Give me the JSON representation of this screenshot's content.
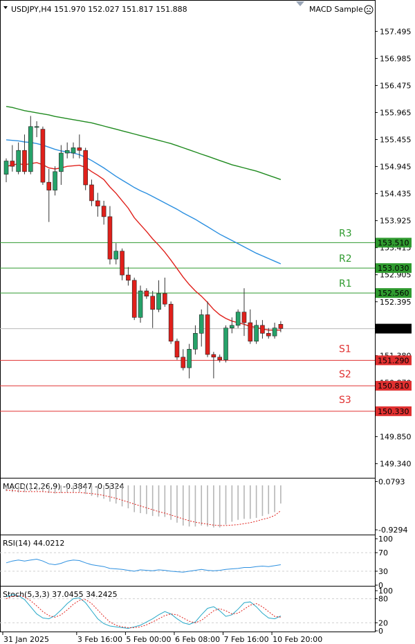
{
  "header": {
    "symbol_info": "USDJPY,H4  151.970 152.027 151.817 151.888",
    "indicator_name": "MACD Sample",
    "indicator_icon": "smiley-icon"
  },
  "colors": {
    "bull": "#26a269",
    "bear": "#e0201b",
    "ma_fast": "#e0201b",
    "ma_mid": "#2b8fe0",
    "ma_slow": "#1f8a1f",
    "res_line": "#2f9a2f",
    "sup_line": "#e03030",
    "price_tag": "#000000"
  },
  "chart_data": [
    {
      "type": "candlestick",
      "title": "USDJPY,H4",
      "ylim": [
        149.1,
        157.8
      ],
      "y_ticks": [
        157.495,
        156.985,
        156.475,
        155.965,
        155.455,
        154.945,
        154.435,
        153.925,
        153.415,
        152.905,
        152.395,
        151.38,
        150.87,
        150.36,
        149.85,
        149.34
      ],
      "x_ticks": [
        "31 Jan 2025",
        "3 Feb 16:00",
        "5 Feb 00:00",
        "6 Feb 08:00",
        "7 Feb 16:00",
        "10 Feb 20:00"
      ],
      "x_tick_index": [
        0,
        12,
        20,
        28,
        36,
        44
      ],
      "last_price": "151.888",
      "levels": [
        {
          "name": "R3",
          "value": "153.510",
          "kind": "resistance"
        },
        {
          "name": "R2",
          "value": "153.030",
          "kind": "resistance"
        },
        {
          "name": "R1",
          "value": "152.560",
          "kind": "resistance"
        },
        {
          "name": "S1",
          "value": "151.290",
          "kind": "support"
        },
        {
          "name": "S2",
          "value": "150.810",
          "kind": "support"
        },
        {
          "name": "S3",
          "value": "150.330",
          "kind": "support"
        }
      ],
      "candles": [
        {
          "o": 154.8,
          "h": 155.1,
          "l": 154.65,
          "c": 155.05
        },
        {
          "o": 155.05,
          "h": 155.35,
          "l": 154.85,
          "c": 154.95
        },
        {
          "o": 154.85,
          "h": 155.4,
          "l": 154.8,
          "c": 155.25
        },
        {
          "o": 155.25,
          "h": 155.55,
          "l": 154.8,
          "c": 154.85
        },
        {
          "o": 154.85,
          "h": 155.9,
          "l": 154.8,
          "c": 155.7
        },
        {
          "o": 155.7,
          "h": 155.8,
          "l": 155.5,
          "c": 155.7
        },
        {
          "o": 155.65,
          "h": 155.7,
          "l": 154.6,
          "c": 154.65
        },
        {
          "o": 154.65,
          "h": 154.9,
          "l": 153.9,
          "c": 154.5
        },
        {
          "o": 154.5,
          "h": 154.95,
          "l": 154.4,
          "c": 154.85
        },
        {
          "o": 154.85,
          "h": 155.35,
          "l": 154.6,
          "c": 155.2
        },
        {
          "o": 155.2,
          "h": 155.4,
          "l": 155.1,
          "c": 155.25
        },
        {
          "o": 155.2,
          "h": 155.4,
          "l": 155.1,
          "c": 155.3
        },
        {
          "o": 155.3,
          "h": 155.55,
          "l": 155.1,
          "c": 155.25
        },
        {
          "o": 155.25,
          "h": 155.3,
          "l": 154.5,
          "c": 154.6
        },
        {
          "o": 154.6,
          "h": 154.7,
          "l": 154.2,
          "c": 154.3
        },
        {
          "o": 154.3,
          "h": 154.45,
          "l": 154.0,
          "c": 154.2
        },
        {
          "o": 154.2,
          "h": 154.3,
          "l": 153.85,
          "c": 154.0
        },
        {
          "o": 154.0,
          "h": 154.2,
          "l": 153.1,
          "c": 153.2
        },
        {
          "o": 153.2,
          "h": 153.5,
          "l": 153.1,
          "c": 153.35
        },
        {
          "o": 153.35,
          "h": 153.4,
          "l": 152.8,
          "c": 152.9
        },
        {
          "o": 152.9,
          "h": 153.05,
          "l": 152.7,
          "c": 152.8
        },
        {
          "o": 152.8,
          "h": 152.85,
          "l": 152.05,
          "c": 152.1
        },
        {
          "o": 152.1,
          "h": 152.7,
          "l": 152.0,
          "c": 152.6
        },
        {
          "o": 152.6,
          "h": 152.65,
          "l": 152.45,
          "c": 152.5
        },
        {
          "o": 152.5,
          "h": 152.6,
          "l": 151.9,
          "c": 152.25
        },
        {
          "o": 152.25,
          "h": 152.8,
          "l": 152.2,
          "c": 152.55
        },
        {
          "o": 152.55,
          "h": 152.85,
          "l": 152.3,
          "c": 152.35
        },
        {
          "o": 152.35,
          "h": 152.4,
          "l": 151.6,
          "c": 151.65
        },
        {
          "o": 151.65,
          "h": 151.7,
          "l": 151.3,
          "c": 151.35
        },
        {
          "o": 151.35,
          "h": 151.5,
          "l": 151.1,
          "c": 151.15
        },
        {
          "o": 151.15,
          "h": 151.6,
          "l": 150.95,
          "c": 151.5
        },
        {
          "o": 151.5,
          "h": 151.95,
          "l": 151.4,
          "c": 151.8
        },
        {
          "o": 151.8,
          "h": 152.25,
          "l": 151.55,
          "c": 152.15
        },
        {
          "o": 152.15,
          "h": 152.4,
          "l": 151.35,
          "c": 151.4
        },
        {
          "o": 151.4,
          "h": 151.45,
          "l": 150.95,
          "c": 151.35
        },
        {
          "o": 151.35,
          "h": 151.4,
          "l": 151.25,
          "c": 151.3
        },
        {
          "o": 151.3,
          "h": 151.95,
          "l": 151.25,
          "c": 151.9
        },
        {
          "o": 151.9,
          "h": 152.1,
          "l": 151.8,
          "c": 151.95
        },
        {
          "o": 151.95,
          "h": 152.25,
          "l": 151.9,
          "c": 152.2
        },
        {
          "o": 152.2,
          "h": 152.65,
          "l": 151.75,
          "c": 152.0
        },
        {
          "o": 152.0,
          "h": 152.25,
          "l": 151.6,
          "c": 151.65
        },
        {
          "o": 151.65,
          "h": 152.05,
          "l": 151.6,
          "c": 151.95
        },
        {
          "o": 151.95,
          "h": 152.05,
          "l": 151.7,
          "c": 151.8
        },
        {
          "o": 151.8,
          "h": 151.9,
          "l": 151.7,
          "c": 151.75
        },
        {
          "o": 151.75,
          "h": 152.0,
          "l": 151.7,
          "c": 151.9
        },
        {
          "o": 151.97,
          "h": 152.03,
          "l": 151.82,
          "c": 151.89
        }
      ],
      "series": [
        {
          "values": [
            154.95,
            154.97,
            155.0,
            154.98,
            155.0,
            155.02,
            154.98,
            154.92,
            154.9,
            154.92,
            154.95,
            154.96,
            154.97,
            154.93,
            154.85,
            154.78,
            154.7,
            154.56,
            154.44,
            154.3,
            154.16,
            153.98,
            153.85,
            153.72,
            153.58,
            153.46,
            153.33,
            153.18,
            153.02,
            152.86,
            152.72,
            152.6,
            152.5,
            152.38,
            152.25,
            152.15,
            152.08,
            152.03,
            152.0,
            151.97,
            151.93,
            151.91,
            151.88,
            151.86,
            151.86,
            151.86
          ]
        },
        {
          "values": [
            155.45,
            155.44,
            155.43,
            155.41,
            155.4,
            155.38,
            155.35,
            155.31,
            155.27,
            155.24,
            155.22,
            155.2,
            155.17,
            155.12,
            155.06,
            154.99,
            154.92,
            154.84,
            154.76,
            154.69,
            154.62,
            154.55,
            154.49,
            154.44,
            154.38,
            154.32,
            154.26,
            154.2,
            154.14,
            154.07,
            154.01,
            153.95,
            153.88,
            153.81,
            153.74,
            153.67,
            153.61,
            153.55,
            153.49,
            153.43,
            153.37,
            153.31,
            153.26,
            153.21,
            153.16,
            153.11
          ]
        },
        {
          "values": [
            156.08,
            156.06,
            156.03,
            156.0,
            155.98,
            155.96,
            155.94,
            155.92,
            155.89,
            155.87,
            155.85,
            155.83,
            155.81,
            155.79,
            155.77,
            155.74,
            155.71,
            155.68,
            155.65,
            155.62,
            155.59,
            155.56,
            155.53,
            155.5,
            155.47,
            155.44,
            155.41,
            155.38,
            155.34,
            155.3,
            155.26,
            155.22,
            155.18,
            155.14,
            155.1,
            155.06,
            155.02,
            154.98,
            154.95,
            154.92,
            154.89,
            154.86,
            154.82,
            154.78,
            154.74,
            154.7
          ]
        }
      ]
    },
    {
      "type": "bar+line",
      "title": "MACD(12,26,9) -0.3847 -0.5324",
      "y_ticks_labels": [
        "0.0793",
        "-0.9294"
      ],
      "y_ticks": [
        0.0793,
        -0.9294
      ],
      "ylim": [
        -1.0,
        0.1
      ],
      "hist": [
        -0.12,
        -0.14,
        -0.15,
        -0.14,
        -0.12,
        -0.11,
        -0.13,
        -0.16,
        -0.17,
        -0.16,
        -0.15,
        -0.14,
        -0.14,
        -0.18,
        -0.22,
        -0.25,
        -0.28,
        -0.34,
        -0.38,
        -0.44,
        -0.48,
        -0.56,
        -0.58,
        -0.6,
        -0.64,
        -0.65,
        -0.66,
        -0.72,
        -0.78,
        -0.84,
        -0.86,
        -0.86,
        -0.84,
        -0.86,
        -0.88,
        -0.88,
        -0.82,
        -0.76,
        -0.72,
        -0.7,
        -0.7,
        -0.68,
        -0.64,
        -0.6,
        -0.56,
        -0.38
      ],
      "signal": [
        -0.1,
        -0.11,
        -0.12,
        -0.13,
        -0.13,
        -0.13,
        -0.13,
        -0.14,
        -0.15,
        -0.15,
        -0.15,
        -0.15,
        -0.15,
        -0.16,
        -0.17,
        -0.19,
        -0.21,
        -0.24,
        -0.27,
        -0.31,
        -0.35,
        -0.39,
        -0.43,
        -0.47,
        -0.51,
        -0.55,
        -0.58,
        -0.62,
        -0.66,
        -0.7,
        -0.74,
        -0.77,
        -0.79,
        -0.81,
        -0.83,
        -0.84,
        -0.84,
        -0.83,
        -0.82,
        -0.8,
        -0.78,
        -0.75,
        -0.71,
        -0.68,
        -0.63,
        -0.53
      ]
    },
    {
      "type": "line",
      "title": "RSI(14) 44.0212",
      "y_ticks": [
        100,
        70,
        30,
        0
      ],
      "ylim": [
        0,
        100
      ],
      "values": [
        48,
        52,
        54,
        52,
        54,
        56,
        52,
        46,
        44,
        47,
        52,
        54,
        53,
        48,
        44,
        42,
        40,
        36,
        35,
        34,
        32,
        30,
        33,
        32,
        31,
        33,
        32,
        30,
        29,
        28,
        30,
        32,
        34,
        32,
        31,
        32,
        34,
        35,
        36,
        38,
        38,
        40,
        41,
        40,
        42,
        44
      ]
    },
    {
      "type": "line",
      "title": "Stoch(5,3,3) 37.0455 34.2425",
      "y_ticks": [
        100,
        80,
        20,
        0
      ],
      "ylim": [
        0,
        100
      ],
      "series": [
        {
          "values": [
            85,
            90,
            88,
            78,
            60,
            42,
            32,
            30,
            38,
            52,
            68,
            80,
            82,
            70,
            50,
            30,
            18,
            12,
            10,
            8,
            6,
            10,
            14,
            22,
            30,
            40,
            48,
            42,
            30,
            20,
            16,
            22,
            40,
            56,
            60,
            50,
            36,
            40,
            54,
            70,
            72,
            60,
            44,
            32,
            30,
            37
          ]
        },
        {
          "values": [
            80,
            86,
            88,
            85,
            75,
            62,
            48,
            38,
            34,
            40,
            52,
            66,
            76,
            78,
            68,
            52,
            36,
            22,
            14,
            10,
            8,
            8,
            10,
            15,
            22,
            30,
            38,
            42,
            40,
            32,
            24,
            20,
            26,
            38,
            50,
            55,
            50,
            42,
            44,
            54,
            64,
            68,
            60,
            48,
            36,
            34
          ]
        }
      ]
    }
  ]
}
